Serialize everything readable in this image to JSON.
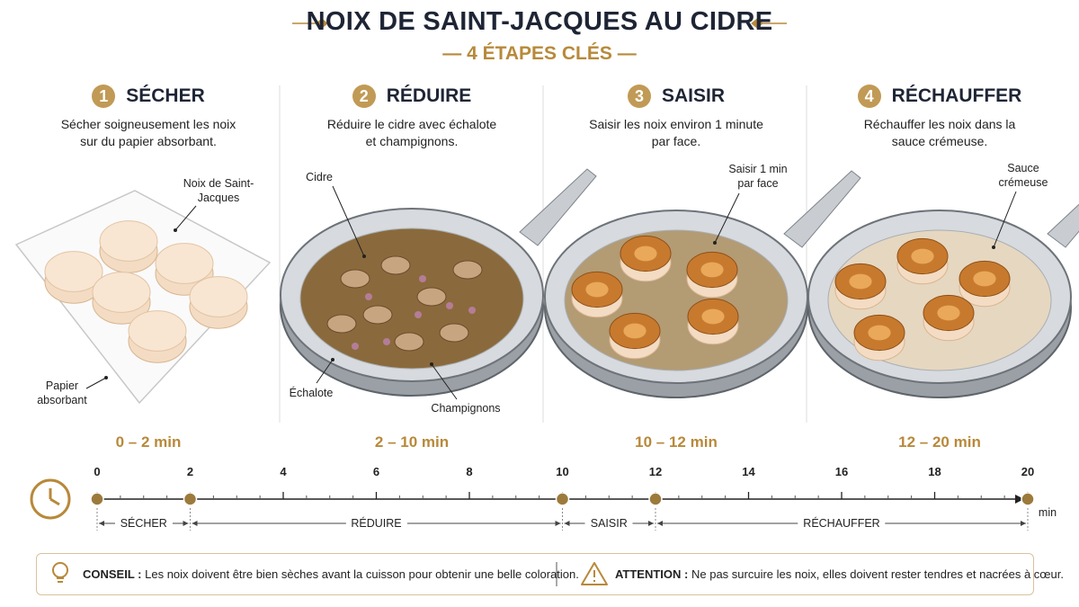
{
  "header": {
    "title": "NOIX DE SAINT-JACQUES AU CIDRE",
    "subtitle": "4 ÉTAPES CLÉS"
  },
  "steps": [
    {
      "number": "1",
      "title": "SÉCHER",
      "description": "Sécher soigneusement les noix sur du papier absorbant.",
      "callouts": [
        "Noix de Saint-Jacques",
        "Papier absorbant"
      ],
      "duration": "0 – 2 min"
    },
    {
      "number": "2",
      "title": "RÉDUIRE",
      "description": "Réduire le cidre avec échalote et champignons.",
      "callouts": [
        "Cidre",
        "Échalote",
        "Champignons"
      ],
      "duration": "2 – 10 min"
    },
    {
      "number": "3",
      "title": "SAISIR",
      "description": "Saisir les noix environ 1 minute par face.",
      "callouts": [
        "Saisir 1 min par face"
      ],
      "duration": "10 – 12 min"
    },
    {
      "number": "4",
      "title": "RÉCHAUFFER",
      "description": "Réchauffer les noix dans la sauce crémeuse.",
      "callouts": [
        "Sauce crémeuse"
      ],
      "duration": "12 – 20 min"
    }
  ],
  "timeline": {
    "ticks": [
      0,
      2,
      4,
      6,
      8,
      10,
      12,
      14,
      16,
      18,
      20
    ],
    "unit": "min",
    "segments": [
      {
        "label": "SÉCHER",
        "start": 0,
        "end": 2
      },
      {
        "label": "RÉDUIRE",
        "start": 2,
        "end": 10
      },
      {
        "label": "SAISIR",
        "start": 10,
        "end": 12
      },
      {
        "label": "RÉCHAUFFER",
        "start": 12,
        "end": 20
      }
    ]
  },
  "notes": [
    {
      "label": "CONSEIL :",
      "text": "Les noix doivent être bien sèches avant la cuisson pour obtenir une belle coloration."
    },
    {
      "label": "ATTENTION :",
      "text": "Ne pas surcuire les noix, elles doivent rester tendres et nacrées à cœur."
    }
  ]
}
